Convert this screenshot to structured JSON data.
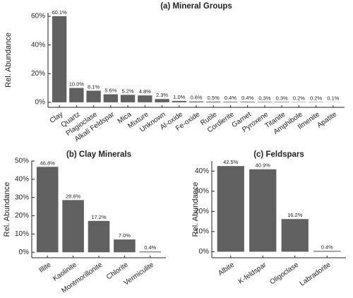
{
  "chart_data": [
    {
      "type": "bar",
      "title": "(a) Mineral Groups",
      "ylabel": "Rel. Abundance",
      "categories": [
        "Clay",
        "Quartz",
        "Plagioclase",
        "Alkali Feldspar",
        "Mica",
        "Mixture",
        "Unknown",
        "Al-oxide",
        "Fe-oxide",
        "Rutile",
        "Cordierite",
        "Garnet",
        "Pyroxene",
        "Titanite",
        "Amphibole",
        "Ilmenite",
        "Apatite"
      ],
      "values": [
        60.1,
        10.0,
        8.1,
        5.6,
        5.2,
        4.8,
        2.3,
        1.0,
        0.6,
        0.5,
        0.4,
        0.4,
        0.3,
        0.3,
        0.2,
        0.2,
        0.1
      ],
      "value_labels": [
        "60.1%",
        "10.0%",
        "8.1%",
        "5.6%",
        "5.2%",
        "4.8%",
        "2.3%",
        "1.0%",
        "0.6%",
        "0.5%",
        "0.4%",
        "0.4%",
        "0.3%",
        "0.3%",
        "0.2%",
        "0.2%",
        "0.1%"
      ],
      "color": "#606060",
      "ylim": [
        -3.5,
        62.5
      ],
      "yticks": [
        {
          "value": 0,
          "label": "0%"
        },
        {
          "value": 20,
          "label": "20%"
        },
        {
          "value": 40,
          "label": "40%"
        },
        {
          "value": 60,
          "label": "60%"
        }
      ]
    },
    {
      "type": "bar",
      "title": "(b) Clay Minerals",
      "ylabel": "Rel. Abundance",
      "categories": [
        "Illite",
        "Kaolinite",
        "Montmorillonite",
        "Chlorite",
        "Vermiculite"
      ],
      "values": [
        46.8,
        28.6,
        17.2,
        7.0,
        0.4
      ],
      "value_labels": [
        "46.8%",
        "28.6%",
        "17.2%",
        "7.0%",
        "0.4%"
      ],
      "color": "#606060",
      "ylim": [
        -3,
        50
      ],
      "yticks": [
        {
          "value": 0,
          "label": "0%"
        },
        {
          "value": 10,
          "label": "10%"
        },
        {
          "value": 20,
          "label": "20%"
        },
        {
          "value": 30,
          "label": "30%"
        },
        {
          "value": 40,
          "label": "40%"
        },
        {
          "value": 50,
          "label": "50%"
        }
      ]
    },
    {
      "type": "bar",
      "title": "(c) Feldspars",
      "ylabel": "Rel. Abundance",
      "categories": [
        "Albite",
        "K-feldspar",
        "Oligoclase",
        "Labradorite"
      ],
      "values": [
        42.5,
        40.9,
        16.2,
        0.4
      ],
      "value_labels": [
        "42.5%",
        "40.9%",
        "16.2%",
        "0.4%"
      ],
      "color": "#606060",
      "ylim": [
        -3,
        45
      ],
      "yticks": [
        {
          "value": 0,
          "label": "0%"
        },
        {
          "value": 10,
          "label": "10%"
        },
        {
          "value": 20,
          "label": "20%"
        },
        {
          "value": 30,
          "label": "30%"
        },
        {
          "value": 40,
          "label": "40%"
        }
      ]
    }
  ]
}
